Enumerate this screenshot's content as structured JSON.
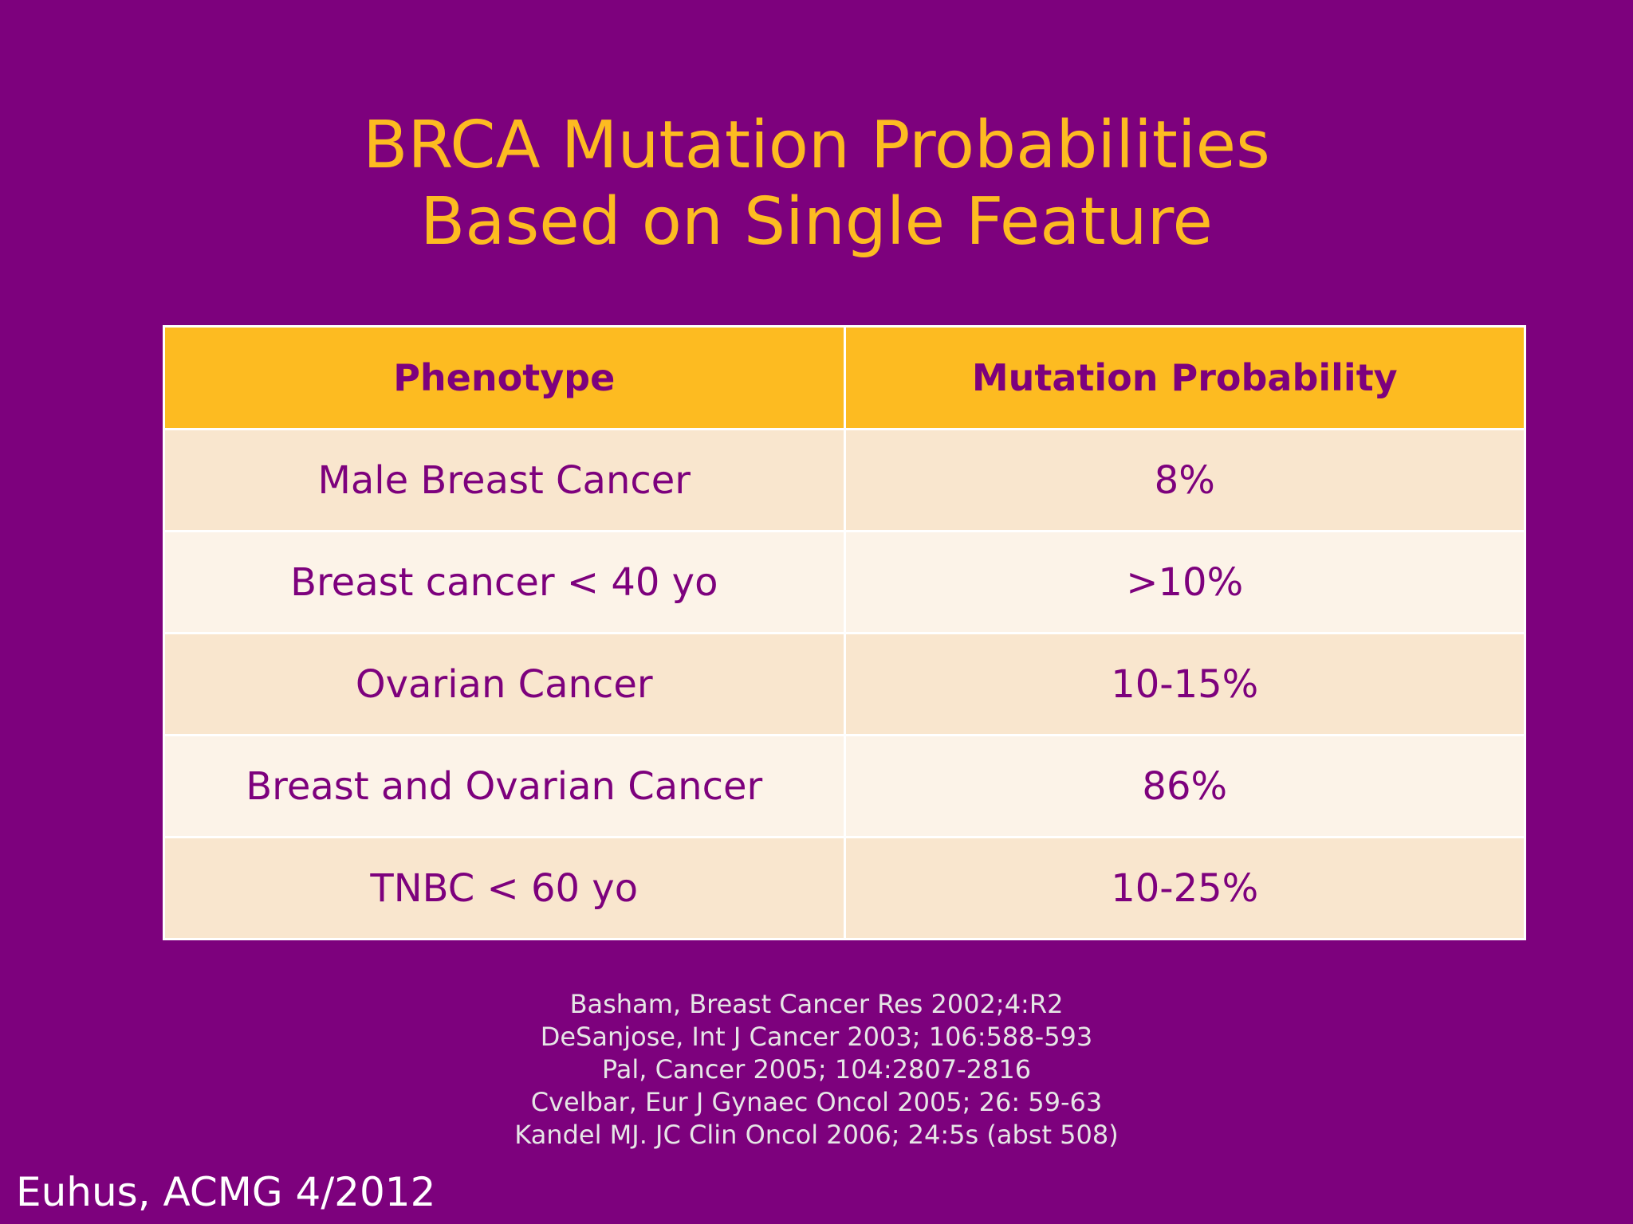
{
  "slide": {
    "title_line1": "BRCA Mutation Probabilities",
    "title_line2": "Based on Single Feature"
  },
  "table": {
    "headers": [
      "Phenotype",
      "Mutation Probability"
    ],
    "rows": [
      {
        "phenotype": "Male Breast Cancer",
        "probability": "8%"
      },
      {
        "phenotype": "Breast cancer < 40 yo",
        "probability": ">10%"
      },
      {
        "phenotype": "Ovarian Cancer",
        "probability": "10-15%"
      },
      {
        "phenotype": "Breast and Ovarian Cancer",
        "probability": "86%"
      },
      {
        "phenotype": "TNBC < 60 yo",
        "probability": "10-25%"
      }
    ]
  },
  "references": [
    "Basham, Breast Cancer Res 2002;4:R2",
    "DeSanjose, Int J Cancer 2003; 106:588-593",
    "Pal, Cancer 2005; 104:2807-2816",
    "Cvelbar, Eur J Gynaec Oncol 2005; 26: 59-63",
    "Kandel MJ. JC Clin Oncol 2006; 24:5s (abst 508)"
  ],
  "credit": "Euhus, ACMG 4/2012",
  "colors": {
    "background": "#7D017D",
    "title": "#FDBB21",
    "header_fill": "#FDBB21",
    "row_odd": "#F9E6CE",
    "row_even": "#FCF3E8"
  }
}
